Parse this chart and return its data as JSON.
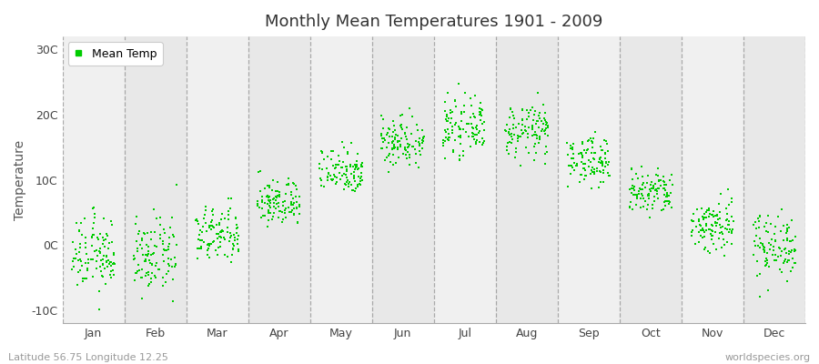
{
  "title": "Monthly Mean Temperatures 1901 - 2009",
  "ylabel": "Temperature",
  "xlabel_labels": [
    "Jan",
    "Feb",
    "Mar",
    "Apr",
    "May",
    "Jun",
    "Jul",
    "Aug",
    "Sep",
    "Oct",
    "Nov",
    "Dec"
  ],
  "ytick_labels": [
    "-10C",
    "0C",
    "10C",
    "20C",
    "30C"
  ],
  "ytick_values": [
    -10,
    0,
    10,
    20,
    30
  ],
  "ylim": [
    -12,
    32
  ],
  "legend_label": "Mean Temp",
  "dot_color": "#00cc00",
  "dot_size": 3,
  "vline_color": "#999999",
  "footer_left": "Latitude 56.75 Longitude 12.25",
  "footer_right": "worldspecies.org",
  "start_year": 1901,
  "end_year": 2009,
  "monthly_means": [
    -1.5,
    -1.8,
    1.5,
    6.5,
    11.5,
    16.0,
    18.0,
    17.5,
    13.0,
    8.0,
    3.0,
    0.0
  ],
  "monthly_stds": [
    2.8,
    2.8,
    2.2,
    1.8,
    1.8,
    2.0,
    2.0,
    2.0,
    1.8,
    1.8,
    2.2,
    2.5
  ]
}
